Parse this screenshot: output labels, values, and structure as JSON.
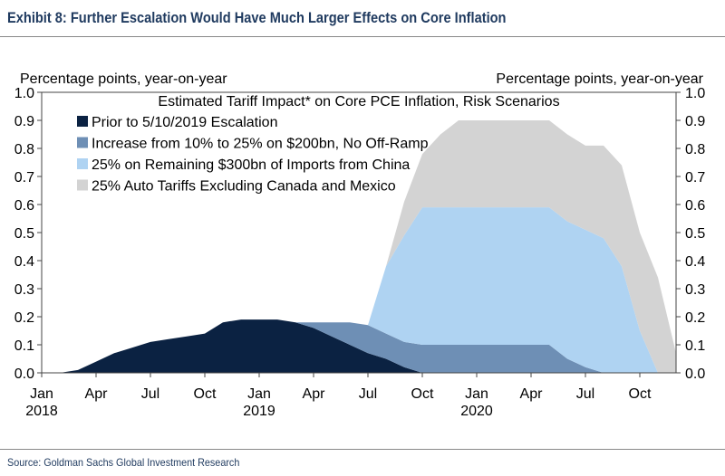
{
  "exhibit": {
    "title": "Exhibit 8: Further Escalation Would Have Much Larger Effects on Core Inflation",
    "source": "Source: Goldman Sachs Global Investment Research"
  },
  "chart_data": {
    "type": "area",
    "stacked": true,
    "title": "Estimated Tariff Impact* on Core PCE Inflation, Risk Scenarios",
    "ylabel_left": "Percentage points, year-on-year",
    "ylabel_right": "Percentage points, year-on-year",
    "ylim": [
      0,
      1.0
    ],
    "yticks": [
      "0.0",
      "0.1",
      "0.2",
      "0.3",
      "0.4",
      "0.5",
      "0.6",
      "0.7",
      "0.8",
      "0.9",
      "1.0"
    ],
    "xlim": [
      0,
      35
    ],
    "xticks": [
      {
        "pos": 0,
        "label": "Jan",
        "year": "2018"
      },
      {
        "pos": 3,
        "label": "Apr",
        "year": ""
      },
      {
        "pos": 6,
        "label": "Jul",
        "year": ""
      },
      {
        "pos": 9,
        "label": "Oct",
        "year": ""
      },
      {
        "pos": 12,
        "label": "Jan",
        "year": "2019"
      },
      {
        "pos": 15,
        "label": "Apr",
        "year": ""
      },
      {
        "pos": 18,
        "label": "Jul",
        "year": ""
      },
      {
        "pos": 21,
        "label": "Oct",
        "year": ""
      },
      {
        "pos": 24,
        "label": "Jan",
        "year": "2020"
      },
      {
        "pos": 27,
        "label": "Apr",
        "year": ""
      },
      {
        "pos": 30,
        "label": "Jul",
        "year": ""
      },
      {
        "pos": 33,
        "label": "Oct",
        "year": ""
      }
    ],
    "legend_position": "top-left",
    "x": [
      0,
      1,
      2,
      3,
      4,
      5,
      6,
      7,
      8,
      9,
      10,
      11,
      12,
      13,
      14,
      15,
      16,
      17,
      18,
      19,
      20,
      21,
      22,
      23,
      24,
      25,
      26,
      27,
      28,
      29,
      30,
      31,
      32,
      33,
      34,
      35
    ],
    "series": [
      {
        "name": "Prior to 5/10/2019 Escalation",
        "color": "#0b2242",
        "values": [
          0,
          0,
          0.01,
          0.04,
          0.07,
          0.09,
          0.11,
          0.12,
          0.13,
          0.14,
          0.18,
          0.19,
          0.19,
          0.19,
          0.18,
          0.16,
          0.13,
          0.1,
          0.07,
          0.05,
          0.02,
          0,
          0,
          0,
          0,
          0,
          0,
          0,
          0,
          0,
          0,
          0,
          0,
          0,
          0,
          0
        ]
      },
      {
        "name": "Increase from 10% to 25% on $200bn, No Off-Ramp",
        "color": "#6e8fb5",
        "values": [
          0,
          0,
          0,
          0,
          0,
          0,
          0,
          0,
          0,
          0,
          0,
          0,
          0,
          0,
          0,
          0.02,
          0.05,
          0.08,
          0.1,
          0.09,
          0.09,
          0.1,
          0.1,
          0.1,
          0.1,
          0.1,
          0.1,
          0.1,
          0.1,
          0.05,
          0.02,
          0,
          0,
          0,
          0,
          0
        ]
      },
      {
        "name": "25% on Remaining $300bn of Imports from China",
        "color": "#afd3f2",
        "values": [
          0,
          0,
          0,
          0,
          0,
          0,
          0,
          0,
          0,
          0,
          0,
          0,
          0,
          0,
          0,
          0,
          0,
          0,
          0,
          0.24,
          0.38,
          0.49,
          0.49,
          0.49,
          0.49,
          0.49,
          0.49,
          0.49,
          0.49,
          0.49,
          0.49,
          0.48,
          0.38,
          0.15,
          0,
          0
        ]
      },
      {
        "name": "25% Auto Tariffs Excluding Canada and Mexico",
        "color": "#d3d3d3",
        "values": [
          0,
          0,
          0,
          0,
          0,
          0,
          0,
          0,
          0,
          0,
          0,
          0,
          0,
          0,
          0,
          0,
          0,
          0,
          0,
          0,
          0.12,
          0.19,
          0.26,
          0.31,
          0.31,
          0.31,
          0.31,
          0.31,
          0.31,
          0.31,
          0.3,
          0.33,
          0.36,
          0.35,
          0.34,
          0.07
        ]
      }
    ]
  }
}
